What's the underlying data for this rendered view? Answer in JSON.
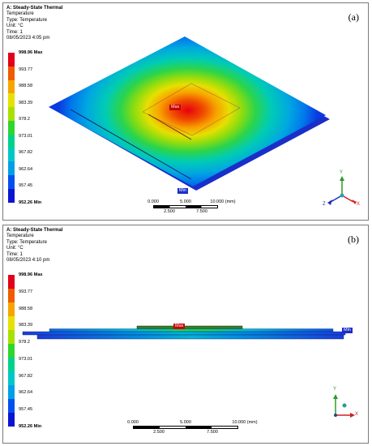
{
  "legend_colors": [
    "#e3001a",
    "#f05a00",
    "#f8a400",
    "#e8e000",
    "#a8e000",
    "#2ed62e",
    "#00d28c",
    "#00c8c8",
    "#00a0e8",
    "#0050f0",
    "#0a14d2"
  ],
  "panel_a": {
    "letter": "(a)",
    "header": {
      "title": "A: Steady-State Thermal",
      "line1": "Temperature",
      "line2": "Type: Temperature",
      "line3": "Unit: °C",
      "line4": "Time: 1",
      "line5": "08/05/2023 4:05 pm"
    },
    "legend": {
      "max_label": "998.96 Max",
      "min_label": "952.26 Min",
      "ticks": [
        "993.77",
        "988.58",
        "983.39",
        "978.2",
        "973.01",
        "967.82",
        "962.64",
        "957.45"
      ]
    },
    "max_tag": "Max",
    "min_tag": "Min",
    "scale": {
      "top0": "0.000",
      "top1": "5.000",
      "top2": "10.000 (mm)",
      "bot1": "2.500",
      "bot2": "7.500"
    },
    "axes": {
      "x": "X",
      "y": "Y",
      "z": "Z"
    }
  },
  "panel_b": {
    "letter": "(b)",
    "header": {
      "title": "A: Steady-State Thermal",
      "line1": "Temperature",
      "line2": "Type: Temperature",
      "line3": "Unit: °C",
      "line4": "Time: 1",
      "line5": "08/05/2023 4:10 pm"
    },
    "legend": {
      "max_label": "998.96 Max",
      "min_label": "952.26 Min",
      "ticks": [
        "993.77",
        "988.58",
        "983.39",
        "978.2",
        "973.01",
        "967.82",
        "962.64",
        "957.45"
      ]
    },
    "max_tag": "Max",
    "min_tag": "Min",
    "scale": {
      "top0": "0.000",
      "top1": "5.000",
      "top2": "10.000 (mm)",
      "bot1": "2.500",
      "bot2": "7.500"
    },
    "axes": {
      "x": "X",
      "y": "Y"
    }
  }
}
